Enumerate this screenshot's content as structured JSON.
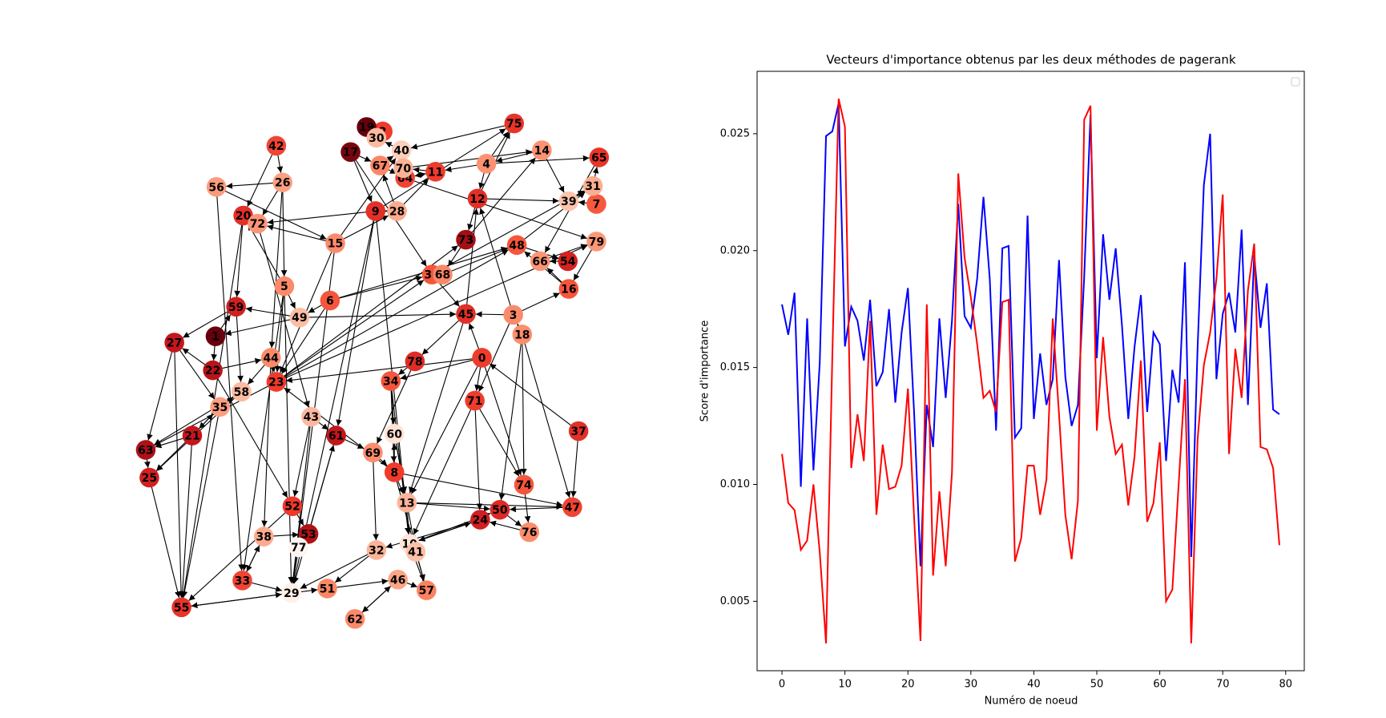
{
  "graph": {
    "nodes": [
      {
        "label": "0",
        "color": "#ef3b2c"
      },
      {
        "label": "1",
        "color": "#67000d"
      },
      {
        "label": "2",
        "color": "#ef3b2c"
      },
      {
        "label": "3",
        "color": "#fc8a6a"
      },
      {
        "label": "4",
        "color": "#fc9272"
      },
      {
        "label": "5",
        "color": "#fc8a6a"
      },
      {
        "label": "6",
        "color": "#f5553c"
      },
      {
        "label": "7",
        "color": "#f6583e"
      },
      {
        "label": "8",
        "color": "#ef3b2c"
      },
      {
        "label": "9",
        "color": "#e32f27"
      },
      {
        "label": "10",
        "color": "#fee5d8"
      },
      {
        "label": "11",
        "color": "#ef3b2c"
      },
      {
        "label": "12",
        "color": "#e32f27"
      },
      {
        "label": "13",
        "color": "#fcb499"
      },
      {
        "label": "14",
        "color": "#fc9272"
      },
      {
        "label": "15",
        "color": "#fc8a6a"
      },
      {
        "label": "16",
        "color": "#f5553c"
      },
      {
        "label": "17",
        "color": "#7a0510"
      },
      {
        "label": "18",
        "color": "#fc8d6d"
      },
      {
        "label": "19",
        "color": "#67000d"
      },
      {
        "label": "20",
        "color": "#e32f27"
      },
      {
        "label": "21",
        "color": "#c4161c"
      },
      {
        "label": "22",
        "color": "#b91419"
      },
      {
        "label": "23",
        "color": "#ef3b2c"
      },
      {
        "label": "24",
        "color": "#d21f20"
      },
      {
        "label": "25",
        "color": "#d21f20"
      },
      {
        "label": "26",
        "color": "#fca082"
      },
      {
        "label": "27",
        "color": "#c4161c"
      },
      {
        "label": "28",
        "color": "#fcab8f"
      },
      {
        "label": "29",
        "color": "#fff0e8"
      },
      {
        "label": "30",
        "color": "#fcbba1"
      },
      {
        "label": "31",
        "color": "#fcae92"
      },
      {
        "label": "32",
        "color": "#fcb499"
      },
      {
        "label": "33",
        "color": "#f14432"
      },
      {
        "label": "34",
        "color": "#f5553c"
      },
      {
        "label": "35",
        "color": "#fc9e80"
      },
      {
        "label": "36",
        "color": "#f5553c"
      },
      {
        "label": "37",
        "color": "#e32f27"
      },
      {
        "label": "38",
        "color": "#fcab8f"
      },
      {
        "label": "39",
        "color": "#fcc4ad"
      },
      {
        "label": "40",
        "color": "#fdd0bc"
      },
      {
        "label": "41",
        "color": "#fcc1a8"
      },
      {
        "label": "42",
        "color": "#f14432"
      },
      {
        "label": "43",
        "color": "#fcb99f"
      },
      {
        "label": "44",
        "color": "#fc8a6a"
      },
      {
        "label": "45",
        "color": "#e32f27"
      },
      {
        "label": "46",
        "color": "#fca486"
      },
      {
        "label": "47",
        "color": "#f14432"
      },
      {
        "label": "48",
        "color": "#f5553c"
      },
      {
        "label": "49",
        "color": "#fcbda4"
      },
      {
        "label": "50",
        "color": "#dd2a25"
      },
      {
        "label": "51",
        "color": "#fc8767"
      },
      {
        "label": "52",
        "color": "#ed392b"
      },
      {
        "label": "53",
        "color": "#b01217"
      },
      {
        "label": "54",
        "color": "#d52221"
      },
      {
        "label": "55",
        "color": "#e83429"
      },
      {
        "label": "56",
        "color": "#fc9c7d"
      },
      {
        "label": "57",
        "color": "#fc8161"
      },
      {
        "label": "58",
        "color": "#fcbba1"
      },
      {
        "label": "59",
        "color": "#d21f20"
      },
      {
        "label": "60",
        "color": "#fee2d5"
      },
      {
        "label": "61",
        "color": "#c4161c"
      },
      {
        "label": "62",
        "color": "#fc8a6a"
      },
      {
        "label": "63",
        "color": "#ae1117"
      },
      {
        "label": "64",
        "color": "#f14432"
      },
      {
        "label": "65",
        "color": "#e83429"
      },
      {
        "label": "66",
        "color": "#fc9576"
      },
      {
        "label": "67",
        "color": "#fc8767"
      },
      {
        "label": "68",
        "color": "#fc8767"
      },
      {
        "label": "69",
        "color": "#fc8d6d"
      },
      {
        "label": "70",
        "color": "#fcb296"
      },
      {
        "label": "71",
        "color": "#ef3b2c"
      },
      {
        "label": "72",
        "color": "#fc9576"
      },
      {
        "label": "73",
        "color": "#a30f15"
      },
      {
        "label": "74",
        "color": "#f5553c"
      },
      {
        "label": "75",
        "color": "#e83429"
      },
      {
        "label": "76",
        "color": "#fc8d6d"
      },
      {
        "label": "77",
        "color": "#fff5f0"
      },
      {
        "label": "78",
        "color": "#e02c26"
      },
      {
        "label": "79",
        "color": "#fc9778"
      }
    ],
    "edges": [
      [
        0,
        45
      ],
      [
        0,
        71
      ],
      [
        0,
        34
      ],
      [
        0,
        23
      ],
      [
        0,
        13
      ],
      [
        3,
        45
      ],
      [
        3,
        12
      ],
      [
        3,
        71
      ],
      [
        4,
        12
      ],
      [
        4,
        11
      ],
      [
        4,
        75
      ],
      [
        5,
        20
      ],
      [
        5,
        23
      ],
      [
        5,
        49
      ],
      [
        5,
        29
      ],
      [
        6,
        49
      ],
      [
        6,
        23
      ],
      [
        6,
        36
      ],
      [
        7,
        39
      ],
      [
        8,
        13
      ],
      [
        8,
        60
      ],
      [
        8,
        23
      ],
      [
        8,
        57
      ],
      [
        9,
        28
      ],
      [
        9,
        10
      ],
      [
        9,
        29
      ],
      [
        9,
        61
      ],
      [
        9,
        72
      ],
      [
        10,
        24
      ],
      [
        10,
        41
      ],
      [
        10,
        50
      ],
      [
        11,
        64
      ],
      [
        11,
        70
      ],
      [
        12,
        73
      ],
      [
        12,
        75
      ],
      [
        13,
        10
      ],
      [
        13,
        47
      ],
      [
        14,
        4
      ],
      [
        14,
        39
      ],
      [
        15,
        72
      ],
      [
        15,
        23
      ],
      [
        15,
        29
      ],
      [
        15,
        28
      ],
      [
        16,
        66
      ],
      [
        16,
        48
      ],
      [
        17,
        36
      ],
      [
        17,
        67
      ],
      [
        17,
        9
      ],
      [
        18,
        3
      ],
      [
        18,
        74
      ],
      [
        18,
        47
      ],
      [
        19,
        2
      ],
      [
        20,
        72
      ],
      [
        20,
        59
      ],
      [
        21,
        63
      ],
      [
        21,
        25
      ],
      [
        21,
        35
      ],
      [
        22,
        27
      ],
      [
        22,
        44
      ],
      [
        23,
        36
      ],
      [
        23,
        48
      ],
      [
        23,
        73
      ],
      [
        23,
        63
      ],
      [
        24,
        32
      ],
      [
        24,
        10
      ],
      [
        25,
        55
      ],
      [
        26,
        56
      ],
      [
        26,
        72
      ],
      [
        26,
        5
      ],
      [
        27,
        63
      ],
      [
        27,
        35
      ],
      [
        28,
        67
      ],
      [
        28,
        9
      ],
      [
        29,
        51
      ],
      [
        29,
        55
      ],
      [
        30,
        19
      ],
      [
        31,
        65
      ],
      [
        31,
        39
      ],
      [
        32,
        29
      ],
      [
        32,
        51
      ],
      [
        33,
        38
      ],
      [
        33,
        29
      ],
      [
        34,
        60
      ],
      [
        34,
        8
      ],
      [
        35,
        55
      ],
      [
        35,
        58
      ],
      [
        36,
        68
      ],
      [
        36,
        45
      ],
      [
        37,
        47
      ],
      [
        37,
        0
      ],
      [
        38,
        33
      ],
      [
        38,
        53
      ],
      [
        39,
        31
      ],
      [
        40,
        30
      ],
      [
        41,
        57
      ],
      [
        42,
        26
      ],
      [
        43,
        61
      ],
      [
        43,
        52
      ],
      [
        44,
        58
      ],
      [
        44,
        23
      ],
      [
        45,
        78
      ],
      [
        45,
        12
      ],
      [
        46,
        57
      ],
      [
        46,
        62
      ],
      [
        47,
        50
      ],
      [
        48,
        54
      ],
      [
        48,
        31
      ],
      [
        49,
        1
      ],
      [
        49,
        59
      ],
      [
        50,
        76
      ],
      [
        51,
        46
      ],
      [
        52,
        55
      ],
      [
        52,
        53
      ],
      [
        53,
        61
      ],
      [
        54,
        66
      ],
      [
        55,
        29
      ],
      [
        56,
        15
      ],
      [
        57,
        10
      ],
      [
        58,
        63
      ],
      [
        59,
        27
      ],
      [
        60,
        13
      ],
      [
        61,
        69
      ],
      [
        62,
        46
      ],
      [
        63,
        25
      ],
      [
        64,
        11
      ],
      [
        65,
        66
      ],
      [
        66,
        79
      ],
      [
        67,
        40
      ],
      [
        68,
        48
      ],
      [
        69,
        8
      ],
      [
        70,
        64
      ],
      [
        71,
        24
      ],
      [
        71,
        74
      ],
      [
        72,
        20
      ],
      [
        73,
        68
      ],
      [
        74,
        76
      ],
      [
        75,
        40
      ],
      [
        76,
        24
      ],
      [
        77,
        29
      ],
      [
        78,
        34
      ],
      [
        79,
        16
      ],
      [
        1,
        22
      ],
      [
        1,
        59
      ],
      [
        2,
        30
      ],
      [
        12,
        39
      ],
      [
        73,
        14
      ],
      [
        36,
        31
      ],
      [
        23,
        79
      ],
      [
        9,
        75
      ],
      [
        28,
        11
      ],
      [
        64,
        79
      ],
      [
        45,
        13
      ],
      [
        0,
        74
      ],
      [
        34,
        10
      ],
      [
        60,
        41
      ],
      [
        69,
        32
      ],
      [
        61,
        29
      ],
      [
        43,
        29
      ],
      [
        21,
        55
      ],
      [
        56,
        33
      ],
      [
        35,
        21
      ],
      [
        58,
        25
      ],
      [
        3,
        16
      ],
      [
        18,
        50
      ],
      [
        71,
        10
      ],
      [
        78,
        69
      ],
      [
        8,
        47
      ],
      [
        13,
        50
      ],
      [
        67,
        64
      ],
      [
        70,
        14
      ],
      [
        4,
        65
      ],
      [
        49,
        45
      ],
      [
        6,
        48
      ],
      [
        15,
        40
      ],
      [
        5,
        33
      ],
      [
        22,
        52
      ],
      [
        44,
        38
      ],
      [
        59,
        58
      ],
      [
        27,
        55
      ],
      [
        42,
        20
      ],
      [
        26,
        44
      ],
      [
        20,
        55
      ],
      [
        72,
        43
      ]
    ]
  },
  "chart_data": {
    "type": "line",
    "title": "Vecteurs d'importance obtenus par les deux méthodes de pagerank",
    "x_label": "Numéro de noeud",
    "y_label": "Score d'importance",
    "x": [
      0,
      1,
      2,
      3,
      4,
      5,
      6,
      7,
      8,
      9,
      10,
      11,
      12,
      13,
      14,
      15,
      16,
      17,
      18,
      19,
      20,
      21,
      22,
      23,
      24,
      25,
      26,
      27,
      28,
      29,
      30,
      31,
      32,
      33,
      34,
      35,
      36,
      37,
      38,
      39,
      40,
      41,
      42,
      43,
      44,
      45,
      46,
      47,
      48,
      49,
      50,
      51,
      52,
      53,
      54,
      55,
      56,
      57,
      58,
      59,
      60,
      61,
      62,
      63,
      64,
      65,
      66,
      67,
      68,
      69,
      70,
      71,
      72,
      73,
      74,
      75,
      76,
      77,
      78,
      79
    ],
    "series": [
      {
        "color": "#0000ff",
        "values": [
          0.0177,
          0.0164,
          0.0182,
          0.0099,
          0.0171,
          0.0106,
          0.0152,
          0.0249,
          0.0251,
          0.0263,
          0.0159,
          0.0176,
          0.017,
          0.0153,
          0.0179,
          0.0142,
          0.0148,
          0.0175,
          0.0135,
          0.0165,
          0.0184,
          0.013,
          0.0065,
          0.0134,
          0.0116,
          0.0171,
          0.0137,
          0.017,
          0.022,
          0.0172,
          0.0167,
          0.0188,
          0.0223,
          0.0188,
          0.0123,
          0.0201,
          0.0202,
          0.012,
          0.0124,
          0.0215,
          0.0128,
          0.0156,
          0.0134,
          0.0145,
          0.0196,
          0.0146,
          0.0125,
          0.0134,
          0.0189,
          0.0258,
          0.0154,
          0.0207,
          0.0179,
          0.0201,
          0.0168,
          0.0128,
          0.0159,
          0.0181,
          0.0131,
          0.0165,
          0.016,
          0.011,
          0.0149,
          0.0135,
          0.0195,
          0.0069,
          0.0158,
          0.0228,
          0.025,
          0.0145,
          0.0173,
          0.0182,
          0.0165,
          0.0209,
          0.0134,
          0.0198,
          0.0167,
          0.0186,
          0.0132,
          0.013
        ]
      },
      {
        "color": "#ff0000",
        "values": [
          0.0113,
          0.0092,
          0.0089,
          0.0072,
          0.0076,
          0.01,
          0.0071,
          0.0032,
          0.0155,
          0.0265,
          0.0253,
          0.0107,
          0.013,
          0.011,
          0.017,
          0.0087,
          0.0117,
          0.0098,
          0.0099,
          0.0108,
          0.0141,
          0.0085,
          0.0033,
          0.0177,
          0.0061,
          0.0097,
          0.0065,
          0.0105,
          0.0233,
          0.0197,
          0.018,
          0.016,
          0.0137,
          0.014,
          0.0131,
          0.0178,
          0.0179,
          0.0067,
          0.0077,
          0.0108,
          0.0108,
          0.0087,
          0.0102,
          0.0171,
          0.013,
          0.0087,
          0.0068,
          0.0093,
          0.0256,
          0.0262,
          0.0123,
          0.0163,
          0.0129,
          0.0113,
          0.0117,
          0.0091,
          0.0112,
          0.0153,
          0.0084,
          0.0092,
          0.0118,
          0.005,
          0.0055,
          0.01,
          0.0145,
          0.0032,
          0.0119,
          0.0151,
          0.0165,
          0.0188,
          0.0224,
          0.0113,
          0.0158,
          0.0137,
          0.0183,
          0.0203,
          0.0116,
          0.0115,
          0.0107,
          0.0074
        ]
      }
    ],
    "xlim": [
      -3.95,
      82.95
    ],
    "ylim": [
      0.00203,
      0.02767
    ],
    "xticks": [
      0,
      10,
      20,
      30,
      40,
      50,
      60,
      70,
      80
    ],
    "yticks": [
      0.005,
      {
        "value": 0.01,
        "label": "0.010"
      },
      0.015,
      {
        "value": 0.02,
        "label": "0.020"
      },
      0.025
    ],
    "legend": "upper right",
    "grid": false
  }
}
